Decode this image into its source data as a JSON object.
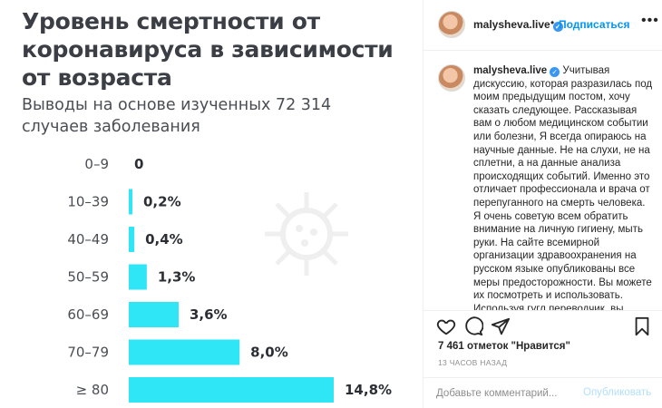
{
  "image": {
    "title": "Уровень смертности от коронавируса в зависимости от возраста",
    "subtitle": "Выводы на основе изученных 72 314 случаев заболевания"
  },
  "chart_data": {
    "type": "bar",
    "orientation": "horizontal",
    "categories": [
      "0–9",
      "10–39",
      "40–49",
      "50–59",
      "60–69",
      "70–79",
      "≥ 80"
    ],
    "values": [
      0,
      0.2,
      0.4,
      1.3,
      3.6,
      8.0,
      14.8
    ],
    "value_labels": [
      "0",
      "0,2%",
      "0,4%",
      "1,3%",
      "3,6%",
      "8,0%",
      "14,8%"
    ],
    "bar_color": "#2ee6f5",
    "grid": false
  },
  "header": {
    "username": "malysheva.live",
    "dot": "•",
    "follow_label": "Подписаться",
    "more": "•••"
  },
  "caption": {
    "username": "malysheva.live",
    "text": "Учитывая дискуссию, которая разразилась под моим предыдущим постом, хочу сказать следующее. Рассказывая вам о любом медицинском событии или болезни, Я всегда опираюсь на научные данные. Не на слухи, не на сплетни, а на данные анализа происходящих событий. Именно это отличает профессионала и врача от перепуганного на смерть человека. Я очень советую всем обратить внимание на личную гигиену, мыть руки. На сайте всемирной организации здравоохранения на русском языке опубликованы все меры предосторожности. Вы можете их посмотреть и использовать. Используя гугл переводчик, вы можете также"
  },
  "stats": {
    "likes": "7 461 отметок \"Нравится\"",
    "time": "13 ЧАСОВ НАЗАД"
  },
  "comment": {
    "placeholder": "Добавьте комментарий...",
    "publish_label": "Опубликовать"
  },
  "icons": [
    "heart-icon",
    "comment-icon",
    "share-icon",
    "bookmark-icon",
    "verified-icon",
    "more-icon",
    "virus-icon"
  ],
  "colors": {
    "accent": "#0095f6",
    "bar": "#2ee6f5",
    "verified": "#3897f0"
  }
}
